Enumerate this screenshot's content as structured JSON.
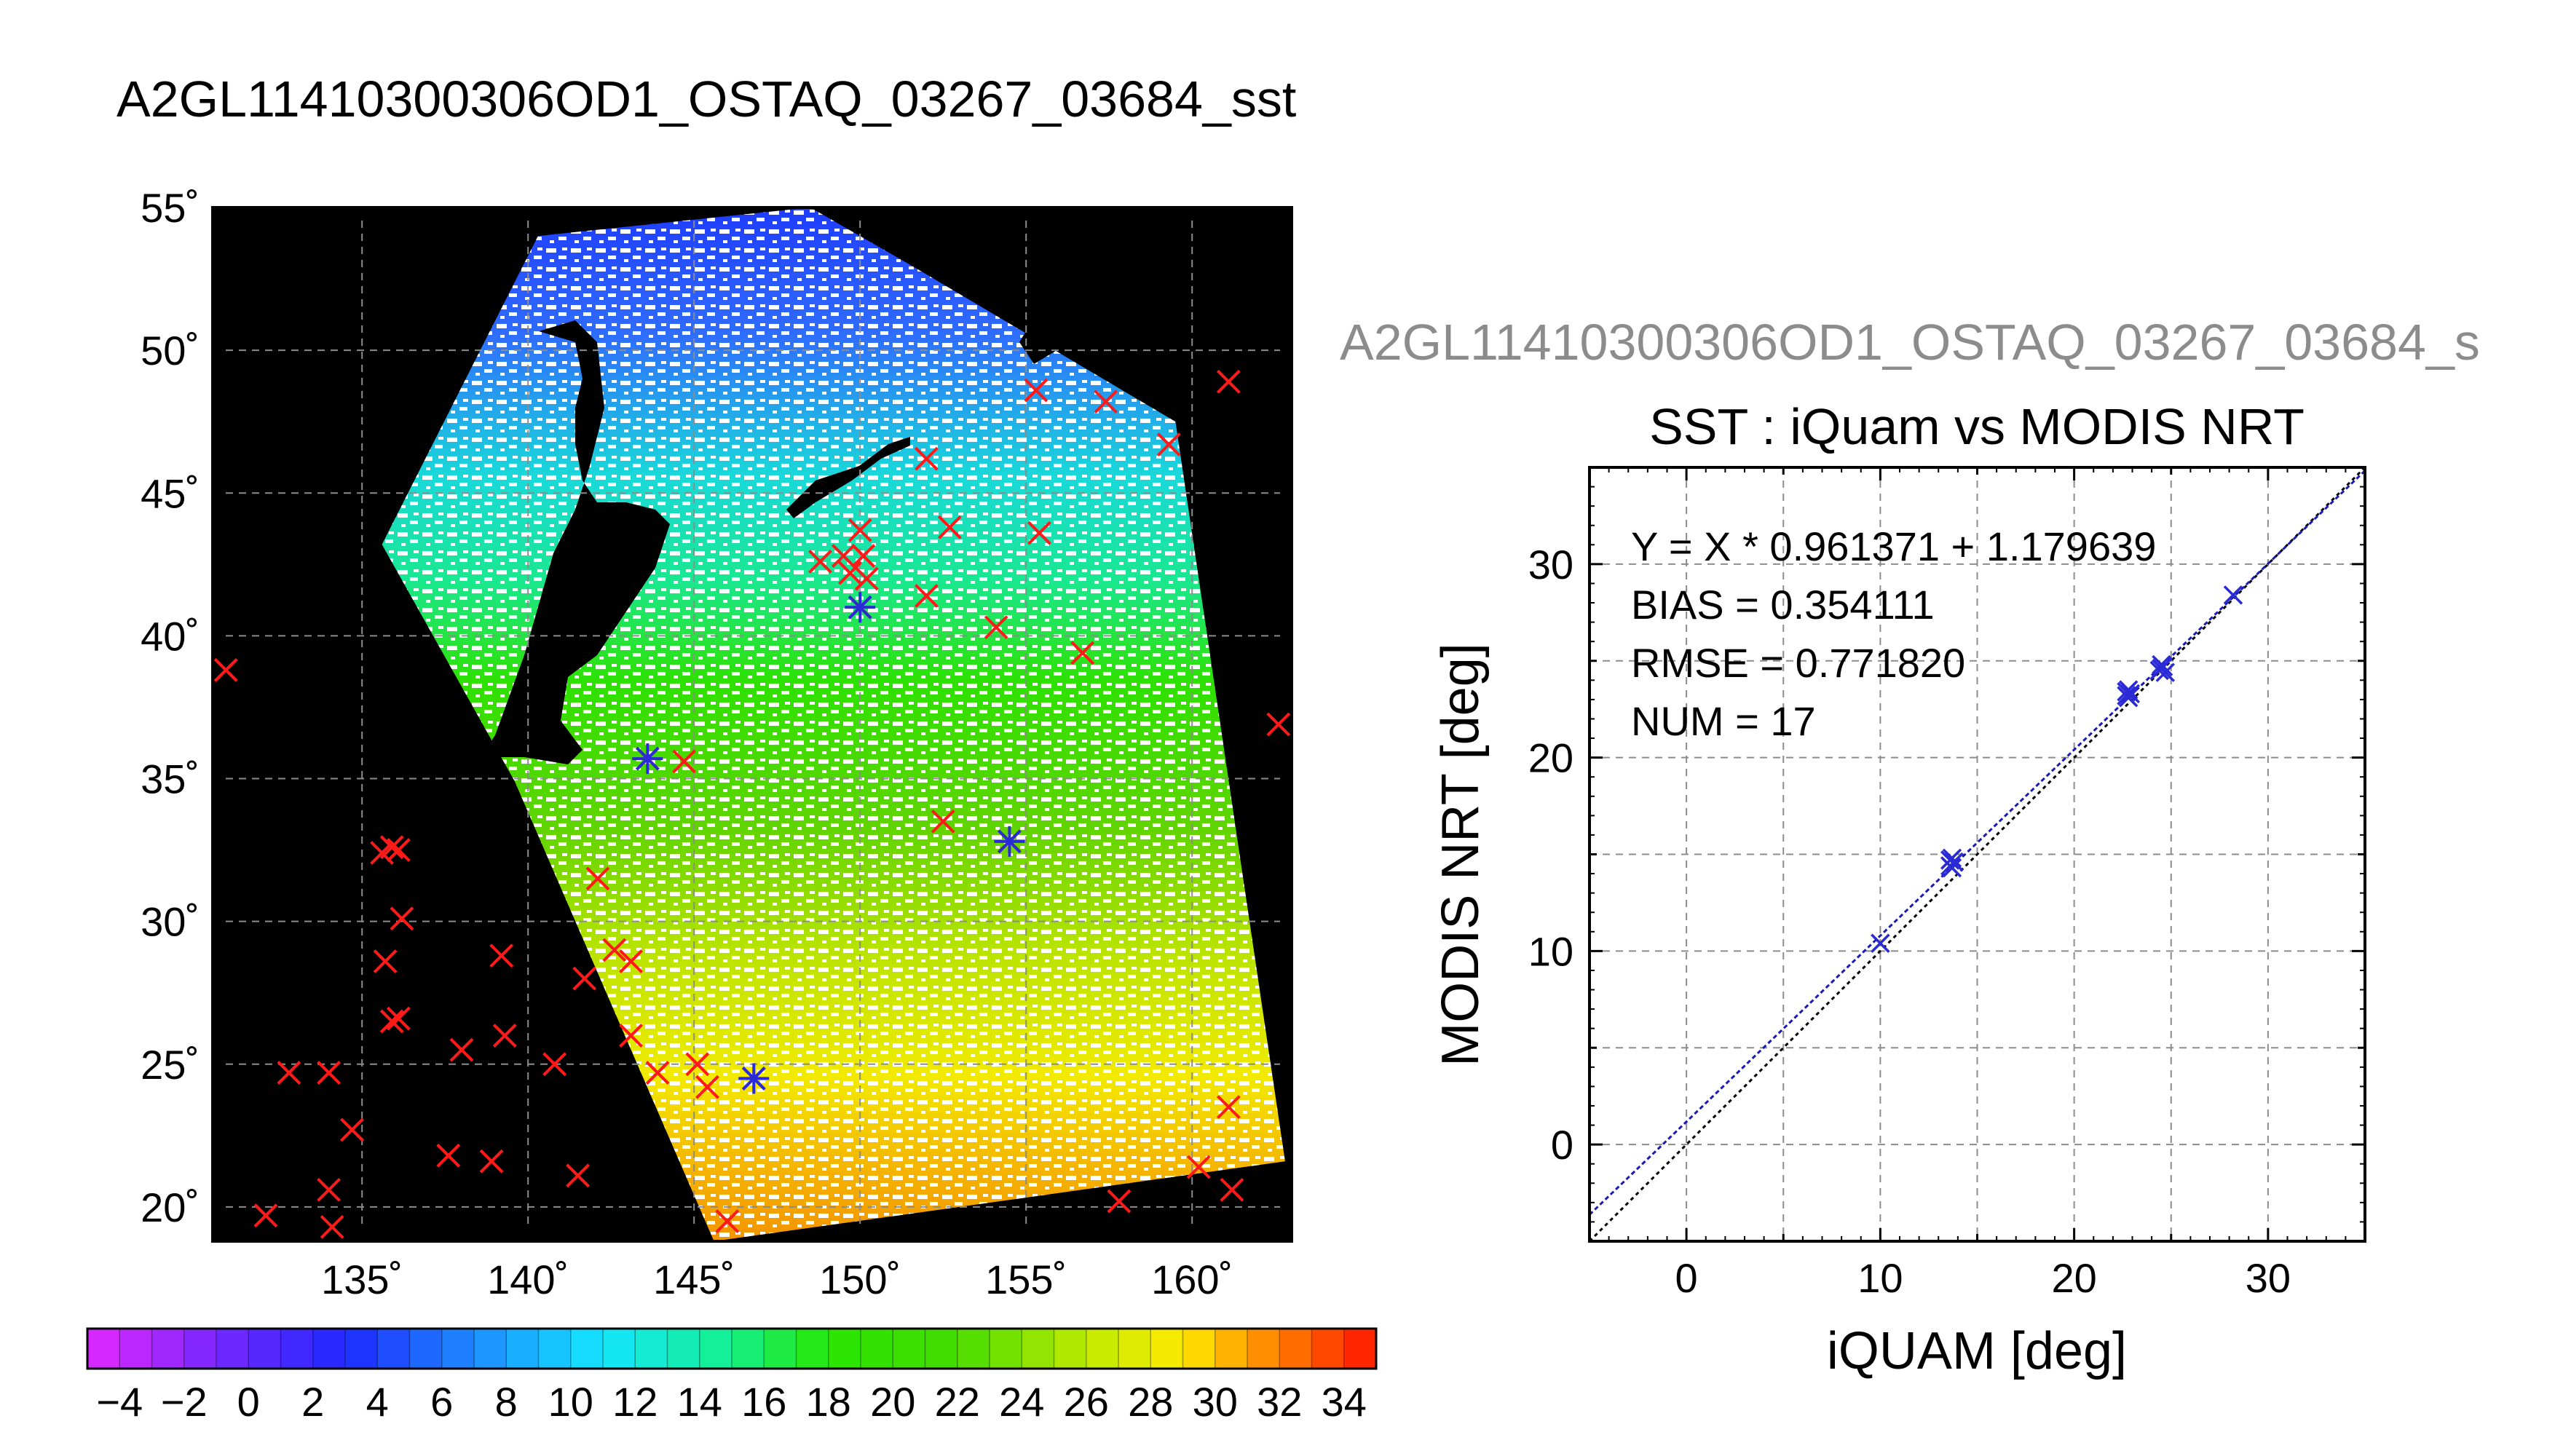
{
  "title": "A2GL11410300306OD1_OSTAQ_03267_03684_sst",
  "chart_data": [
    {
      "type": "heatmap",
      "map": {
        "lon_range": [
          130.5,
          163
        ],
        "lat_range": [
          18.8,
          55
        ],
        "lon_ticks": [
          135,
          140,
          145,
          150,
          155,
          160
        ],
        "lat_ticks": [
          20,
          25,
          30,
          35,
          40,
          45,
          50,
          55
        ],
        "degree_symbol": "˚",
        "grid": true,
        "background": "#000000"
      },
      "swath_corners": [
        [
          140.3,
          54.0
        ],
        [
          148.5,
          55.0
        ],
        [
          151.5,
          53.0
        ],
        [
          159.5,
          47.5
        ],
        [
          162.8,
          21.6
        ],
        [
          145.6,
          18.8
        ],
        [
          139.6,
          34.9
        ],
        [
          135.6,
          43.2
        ]
      ],
      "insitu_markers": [
        {
          "lon": 130.9,
          "lat": 38.8
        },
        {
          "lon": 162.6,
          "lat": 36.9
        },
        {
          "lon": 161.1,
          "lat": 48.9
        },
        {
          "lon": 157.4,
          "lat": 48.2
        },
        {
          "lon": 159.3,
          "lat": 46.7
        },
        {
          "lon": 155.3,
          "lat": 48.6
        },
        {
          "lon": 152.0,
          "lat": 46.2
        },
        {
          "lon": 155.4,
          "lat": 43.6
        },
        {
          "lon": 152.7,
          "lat": 43.8
        },
        {
          "lon": 150.0,
          "lat": 43.7
        },
        {
          "lon": 148.8,
          "lat": 42.6
        },
        {
          "lon": 149.5,
          "lat": 42.8
        },
        {
          "lon": 150.1,
          "lat": 42.8
        },
        {
          "lon": 149.7,
          "lat": 42.2
        },
        {
          "lon": 150.2,
          "lat": 42.0
        },
        {
          "lon": 152.0,
          "lat": 41.4
        },
        {
          "lon": 154.1,
          "lat": 40.3
        },
        {
          "lon": 156.7,
          "lat": 39.4
        },
        {
          "lon": 144.7,
          "lat": 35.6
        },
        {
          "lon": 152.5,
          "lat": 33.5
        },
        {
          "lon": 135.6,
          "lat": 32.4
        },
        {
          "lon": 135.9,
          "lat": 32.6
        },
        {
          "lon": 136.1,
          "lat": 32.5
        },
        {
          "lon": 142.1,
          "lat": 31.5
        },
        {
          "lon": 136.2,
          "lat": 30.1
        },
        {
          "lon": 142.6,
          "lat": 29.0
        },
        {
          "lon": 143.1,
          "lat": 28.6
        },
        {
          "lon": 135.7,
          "lat": 28.6
        },
        {
          "lon": 139.2,
          "lat": 28.8
        },
        {
          "lon": 141.7,
          "lat": 28.0
        },
        {
          "lon": 135.9,
          "lat": 26.5
        },
        {
          "lon": 136.1,
          "lat": 26.6
        },
        {
          "lon": 143.1,
          "lat": 26.0
        },
        {
          "lon": 139.3,
          "lat": 26.0
        },
        {
          "lon": 138.0,
          "lat": 25.5
        },
        {
          "lon": 140.8,
          "lat": 25.0
        },
        {
          "lon": 145.1,
          "lat": 25.0
        },
        {
          "lon": 132.8,
          "lat": 24.7
        },
        {
          "lon": 134.0,
          "lat": 24.7
        },
        {
          "lon": 143.9,
          "lat": 24.7
        },
        {
          "lon": 145.4,
          "lat": 24.2
        },
        {
          "lon": 134.7,
          "lat": 22.7
        },
        {
          "lon": 137.6,
          "lat": 21.8
        },
        {
          "lon": 138.9,
          "lat": 21.6
        },
        {
          "lon": 141.5,
          "lat": 21.1
        },
        {
          "lon": 134.0,
          "lat": 20.6
        },
        {
          "lon": 132.1,
          "lat": 19.7
        },
        {
          "lon": 134.1,
          "lat": 19.3
        },
        {
          "lon": 146.0,
          "lat": 19.5
        },
        {
          "lon": 157.8,
          "lat": 20.2
        },
        {
          "lon": 160.2,
          "lat": 21.4
        },
        {
          "lon": 161.2,
          "lat": 20.6
        },
        {
          "lon": 161.1,
          "lat": 23.5
        }
      ],
      "matchup_markers": [
        {
          "lon": 143.6,
          "lat": 35.7
        },
        {
          "lon": 154.5,
          "lat": 32.8
        },
        {
          "lon": 146.8,
          "lat": 24.5
        },
        {
          "lon": 150.0,
          "lat": 41.0
        }
      ],
      "colorbar": {
        "min": -5,
        "max": 35,
        "step": 1,
        "tick_labels": [
          "−4",
          "−2",
          "0",
          "2",
          "4",
          "6",
          "8",
          "10",
          "12",
          "14",
          "16",
          "18",
          "20",
          "22",
          "24",
          "26",
          "28",
          "30",
          "32",
          "34"
        ]
      }
    },
    {
      "type": "scatter",
      "filename": "A2GL11410300306OD1_OSTAQ_03267_03684_s",
      "title": "SST : iQuam vs MODIS NRT",
      "xlabel": "iQUAM [deg]",
      "ylabel": "MODIS NRT [deg]",
      "xlim": [
        -5,
        35
      ],
      "ylim": [
        -5,
        35
      ],
      "xticks": [
        0,
        10,
        20,
        30
      ],
      "yticks": [
        0,
        10,
        20,
        30
      ],
      "grid": true,
      "stats": [
        "Y = X * 0.961371 + 1.179639",
        "BIAS = 0.354111",
        "RMSE = 0.771820",
        "NUM = 17"
      ],
      "fit": {
        "slope": 0.961371,
        "intercept": 1.179639
      },
      "points": [
        {
          "x": 10.0,
          "y": 10.4
        },
        {
          "x": 13.6,
          "y": 14.4
        },
        {
          "x": 13.7,
          "y": 14.8
        },
        {
          "x": 13.8,
          "y": 14.6
        },
        {
          "x": 13.7,
          "y": 14.3
        },
        {
          "x": 22.7,
          "y": 23.2
        },
        {
          "x": 22.8,
          "y": 23.5
        },
        {
          "x": 22.9,
          "y": 23.3
        },
        {
          "x": 22.7,
          "y": 23.4
        },
        {
          "x": 24.4,
          "y": 24.5
        },
        {
          "x": 24.6,
          "y": 24.7
        },
        {
          "x": 24.5,
          "y": 24.6
        },
        {
          "x": 24.7,
          "y": 24.4
        },
        {
          "x": 24.5,
          "y": 24.8
        },
        {
          "x": 28.2,
          "y": 28.4
        },
        {
          "x": 22.8,
          "y": 23.1
        },
        {
          "x": 13.6,
          "y": 14.7
        }
      ],
      "colors": {
        "points": "#2a2ad6",
        "fit_line": "#1a1ab4",
        "one_to_one": "#000000"
      }
    }
  ]
}
